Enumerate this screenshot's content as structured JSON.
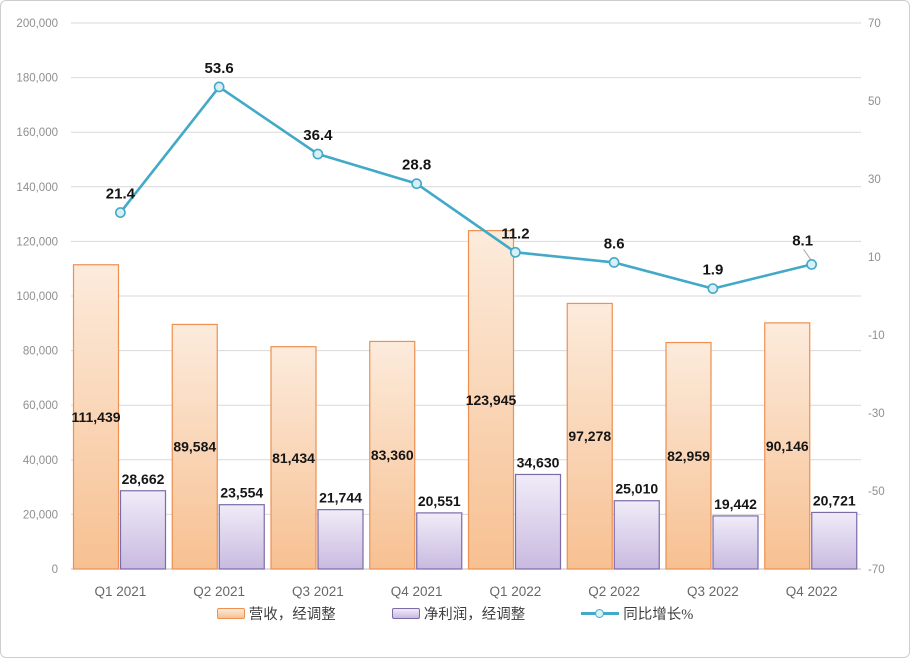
{
  "chart_data": {
    "type": "combo",
    "title": "",
    "categories": [
      "Q1 2021",
      "Q2 2021",
      "Q3 2021",
      "Q4 2021",
      "Q1 2022",
      "Q2 2022",
      "Q3 2022",
      "Q4 2022"
    ],
    "series": [
      {
        "name": "营收，经调整",
        "type": "bar",
        "axis": "left",
        "values": [
          111439,
          89584,
          81434,
          83360,
          123945,
          97278,
          82959,
          90146
        ],
        "labels": [
          "111,439",
          "89,584",
          "81,434",
          "83,360",
          "123,945",
          "97,278",
          "82,959",
          "90,146"
        ],
        "label_position": "inside-center",
        "fill_top": "#FCEBDC",
        "fill_bottom": "#F7C091",
        "border": "#ED9050"
      },
      {
        "name": "净利润，经调整",
        "type": "bar",
        "axis": "left",
        "values": [
          28662,
          23554,
          21744,
          20551,
          34630,
          25010,
          19442,
          20721
        ],
        "labels": [
          "28,662",
          "23,554",
          "21,744",
          "20,551",
          "34,630",
          "25,010",
          "19,442",
          "20,721"
        ],
        "label_position": "outside-end",
        "fill_top": "#F0ECF8",
        "fill_bottom": "#C9BAE0",
        "border": "#7C6BA8"
      },
      {
        "name": "同比增长%",
        "type": "line",
        "axis": "right",
        "values": [
          21.4,
          53.6,
          36.4,
          28.8,
          11.2,
          8.6,
          1.9,
          8.1
        ],
        "labels": [
          "21.4",
          "53.6",
          "36.4",
          "28.8",
          "11.2",
          "8.6",
          "1.9",
          "8.1"
        ],
        "label_position": "above",
        "color": "#42A9C8",
        "marker_fill": "#D9EFF6"
      }
    ],
    "left_axis": {
      "min": 0,
      "max": 200000,
      "step": 20000,
      "tick_labels": [
        "200,000",
        "180,000",
        "160,000",
        "140,000",
        "120,000",
        "100,000",
        "80,000",
        "60,000",
        "40,000",
        "20,000",
        "0"
      ]
    },
    "right_axis": {
      "min": -70,
      "max": 70,
      "step": 20,
      "tick_labels": [
        "70",
        "50",
        "30",
        "10",
        "-10",
        "-30",
        "-50",
        "-70"
      ]
    },
    "gridlines": true,
    "legend_position": "bottom"
  },
  "palette": {
    "background": "#FFFFFF",
    "chart_border": "#CFCDCD",
    "gridline": "#D9D9D9",
    "axis_line": "#BFBFBF",
    "tick_text": "#8F8F8F",
    "category_text": "#686868",
    "data_label": "#151515",
    "legend_text": "#3F3F3F",
    "leader_line": "#A6A6A6"
  }
}
